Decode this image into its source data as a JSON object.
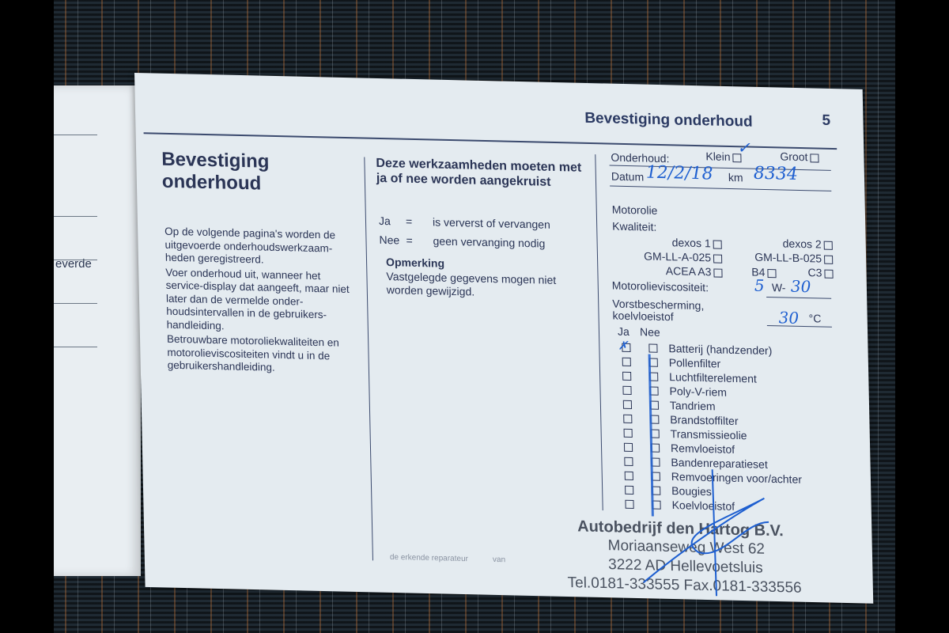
{
  "left_page": {
    "fragment": "everde"
  },
  "header": {
    "title": "Bevestiging onderhoud",
    "page_number": "5"
  },
  "col1": {
    "title_line1": "Bevestiging",
    "title_line2": "onderhoud",
    "paragraphs": [
      "Op de volgende pagina's worden de uitgevoerde onderhoudswerkzaam-heden geregistreerd.",
      "Voer onderhoud uit, wanneer het service-display dat aangeeft, maar niet later dan de vermelde onder-houdsintervallen in de gebruikers-handleiding.",
      "Betrouwbare motoroliekwaliteiten en motorolieviscositeiten vindt u in de gebruikershandleiding."
    ]
  },
  "col2": {
    "title": "Deze werkzaamheden moeten met ja of nee worden aangekruist",
    "legend": [
      {
        "key": "Ja",
        "eq": "=",
        "value": "is ververst of vervangen"
      },
      {
        "key": "Nee",
        "eq": "=",
        "value": "geen vervanging nodig"
      }
    ],
    "note_title": "Opmerking",
    "note_text": "Vastgelegde gegevens mogen niet worden gewijzigd."
  },
  "form": {
    "onderhoud_label": "Onderhoud:",
    "klein_label": "Klein",
    "klein_checked": true,
    "groot_label": "Groot",
    "datum_label": "Datum",
    "datum_value": "12/2/18",
    "km_label": "km",
    "km_value": "8334",
    "motorolie_label": "Motorolie",
    "kwaliteit_label": "Kwaliteit:",
    "oil_options": [
      "dexos 1",
      "dexos 2",
      "GM-LL-A-025",
      "GM-LL-B-025",
      "ACEA A3",
      "B4",
      "C3"
    ],
    "viscositeit_label": "Motorolieviscositeit:",
    "visc_first": "5",
    "visc_mid": "W-",
    "visc_second": "30",
    "vorst_label_line1": "Vorstbescherming,",
    "vorst_label_line2": "koelvloeistof",
    "vorst_value": "30",
    "vorst_unit": "°C",
    "ja_label": "Ja",
    "nee_label": "Nee",
    "items": [
      {
        "label": "Batterij (handzender)",
        "ja": true,
        "nee": false
      },
      {
        "label": "Pollenfilter",
        "ja": false,
        "nee": true
      },
      {
        "label": "Luchtfilterelement",
        "ja": false,
        "nee": true
      },
      {
        "label": "Poly-V-riem",
        "ja": false,
        "nee": true
      },
      {
        "label": "Tandriem",
        "ja": false,
        "nee": true
      },
      {
        "label": "Brandstoffilter",
        "ja": false,
        "nee": true
      },
      {
        "label": "Transmissieolie",
        "ja": false,
        "nee": true
      },
      {
        "label": "Remvloeistof",
        "ja": false,
        "nee": true
      },
      {
        "label": "Bandenreparatieset",
        "ja": false,
        "nee": true
      },
      {
        "label": "Remvoeringen voor/achter",
        "ja": false,
        "nee": true
      },
      {
        "label": "Bougies",
        "ja": false,
        "nee": true
      },
      {
        "label": "Koelvloeistof",
        "ja": false,
        "nee": true
      }
    ],
    "faint_text": "de erkende reparateur",
    "faint_van": "van"
  },
  "stamp": {
    "line1": "Autobedrijf den Hartog B.V.",
    "line2": "Moriaanseweg West 62",
    "line3": "3222 AD Hellevoetsluis",
    "line4": "Tel.0181-333555 Fax.0181-333556"
  },
  "colors": {
    "ink": "#2b3556",
    "pen": "#1e5fd0",
    "paper": "#e4ebf0",
    "fabric": "#1f2a33"
  }
}
